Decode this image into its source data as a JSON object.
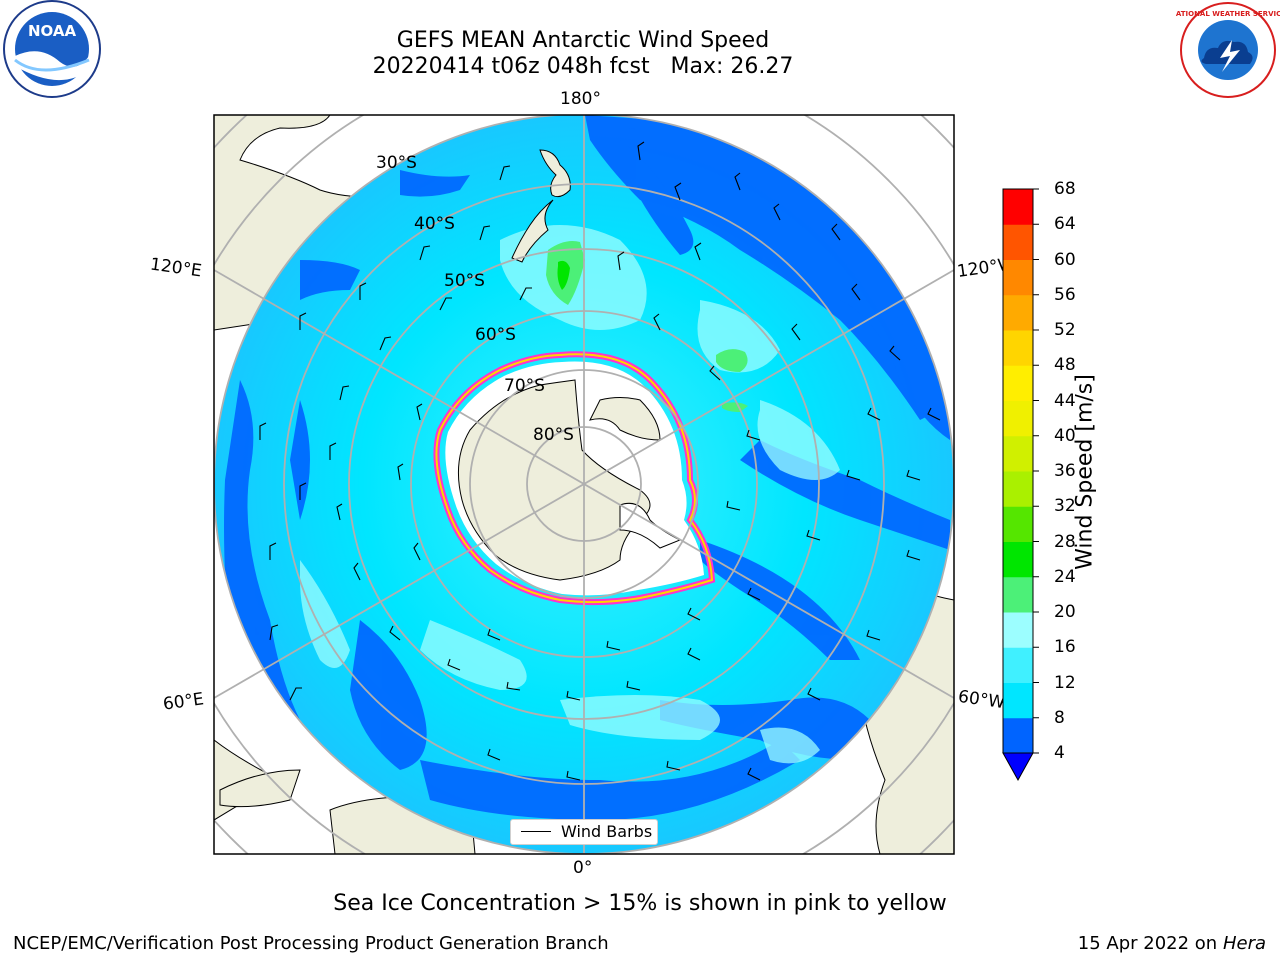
{
  "title": {
    "line1": "GEFS MEAN Antarctic Wind Speed",
    "line2": "20220414 t06z 048h fcst   Max: 26.27"
  },
  "map": {
    "projection": "south-polar-stereographic",
    "longitude_labels": {
      "top": "180°",
      "bottom": "0°",
      "upper_left": "120°E",
      "upper_right": "120°W",
      "lower_left": "60°E",
      "lower_right": "60°W"
    },
    "latitude_labels": [
      "30°S",
      "40°S",
      "50°S",
      "60°S",
      "70°S",
      "80°S"
    ],
    "colors": {
      "land": "#eeeedc",
      "ice_shelf": "#ffffff",
      "sea_ice_edge": "#ff33cc",
      "graticule": "#b0b0b0"
    }
  },
  "colorbar": {
    "label": "Wind Speed [m/s]",
    "ticks": [
      "4",
      "8",
      "12",
      "16",
      "20",
      "24",
      "28",
      "32",
      "36",
      "40",
      "44",
      "48",
      "52",
      "56",
      "60",
      "64",
      "68"
    ],
    "colors": [
      "#0064ff",
      "#00e6ff",
      "#40f0ff",
      "#9cfeff",
      "#4cf078",
      "#00e600",
      "#55e600",
      "#aaf000",
      "#d0f000",
      "#f0f000",
      "#ffee00",
      "#ffd500",
      "#ffaa00",
      "#ff8800",
      "#ff5500",
      "#ff0000"
    ],
    "under_color": "#0000ff"
  },
  "legend": {
    "label": "Wind Barbs"
  },
  "subtitle": "Sea Ice Concentration > 15% is shown in pink to yellow",
  "footer": {
    "left": "NCEP/EMC/Verification Post Processing Product Generation Branch",
    "right_prefix": "15 Apr 2022 on ",
    "right_host": "Hera"
  },
  "logos": {
    "left": "NOAA",
    "right": "NATIONAL WEATHER SERVICE"
  }
}
